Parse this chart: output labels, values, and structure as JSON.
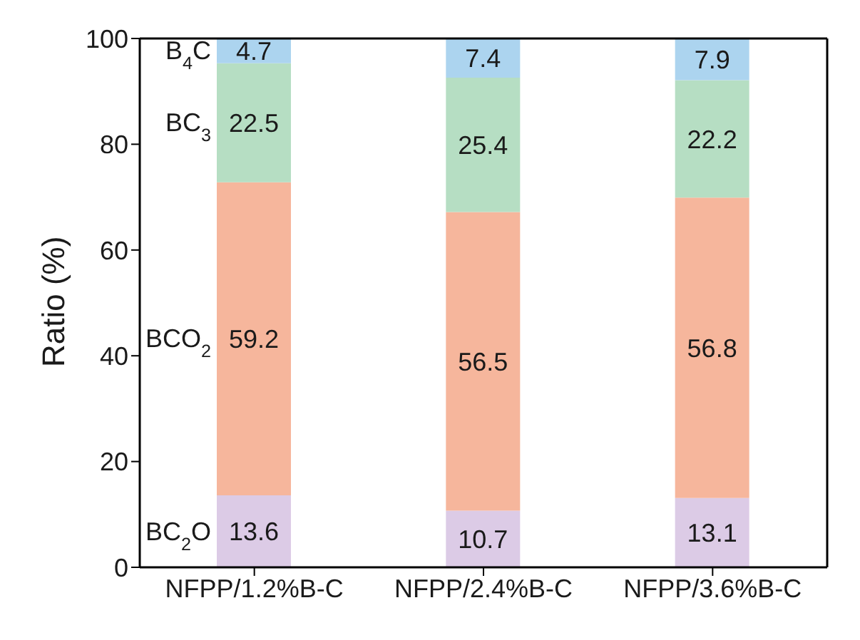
{
  "chart_data": {
    "type": "bar",
    "stacked": true,
    "ylabel": "Ratio (%)",
    "categories": [
      "NFPP/1.2%B-C",
      "NFPP/2.4%B-C",
      "NFPP/3.6%B-C"
    ],
    "series": [
      {
        "name": "BC$_{2}$O",
        "color": "#dccbe6",
        "values": [
          13.6,
          10.7,
          13.1
        ]
      },
      {
        "name": "BCO$_{2}$",
        "color": "#f6b69c",
        "values": [
          59.2,
          56.5,
          56.8
        ]
      },
      {
        "name": "BC$_{3}$",
        "color": "#b6dec3",
        "values": [
          22.5,
          25.4,
          22.2
        ]
      },
      {
        "name": "B$_{4}$C",
        "color": "#acd4ef",
        "values": [
          4.7,
          7.4,
          7.9
        ]
      }
    ],
    "ylim": [
      0,
      100
    ],
    "yticks": [
      0,
      20,
      40,
      60,
      80,
      100
    ],
    "data_labels": true,
    "legend": false,
    "grid": false
  }
}
